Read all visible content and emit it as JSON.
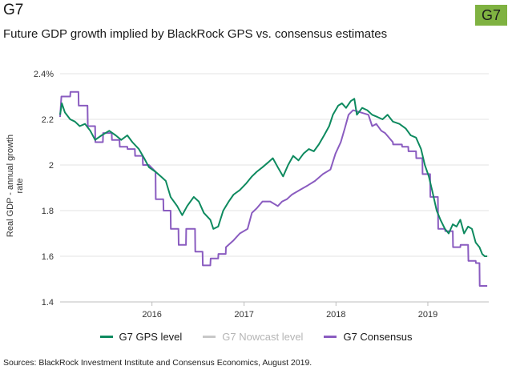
{
  "header": {
    "title": "G7",
    "badge": "G7",
    "badge_color": "#7fb241"
  },
  "chart_data": {
    "type": "line",
    "title": "Future GDP growth implied by BlackRock GPS vs. consensus estimates",
    "ylabel": "Real GDP - annual growth rate",
    "ylim": [
      1.4,
      2.4
    ],
    "y_ticks": [
      "1.4",
      "1.6",
      "1.8",
      "2",
      "2.2",
      "2.4%"
    ],
    "y_tick_values": [
      1.4,
      1.6,
      1.8,
      2.0,
      2.2,
      2.4
    ],
    "xlim": [
      "2015-01-01",
      "2019-08-31"
    ],
    "x_ticks": [
      "2016",
      "2017",
      "2018",
      "2019"
    ],
    "x_tick_dates": [
      "2016-01-01",
      "2017-01-01",
      "2018-01-01",
      "2019-01-01"
    ],
    "grid": true,
    "legend_position": "bottom",
    "series": [
      {
        "name": "G7 GPS level",
        "color": "#0e8a5f",
        "points": [
          [
            "2015-01-01",
            2.22
          ],
          [
            "2015-01-08",
            2.27
          ],
          [
            "2015-01-20",
            2.23
          ],
          [
            "2015-02-10",
            2.2
          ],
          [
            "2015-03-01",
            2.19
          ],
          [
            "2015-03-20",
            2.17
          ],
          [
            "2015-04-10",
            2.18
          ],
          [
            "2015-05-01",
            2.15
          ],
          [
            "2015-05-20",
            2.11
          ],
          [
            "2015-06-15",
            2.13
          ],
          [
            "2015-07-15",
            2.15
          ],
          [
            "2015-08-10",
            2.13
          ],
          [
            "2015-09-01",
            2.11
          ],
          [
            "2015-09-25",
            2.13
          ],
          [
            "2015-10-15",
            2.1
          ],
          [
            "2015-11-10",
            2.07
          ],
          [
            "2015-12-01",
            2.03
          ],
          [
            "2015-12-20",
            1.99
          ],
          [
            "2016-01-15",
            1.97
          ],
          [
            "2016-02-05",
            1.95
          ],
          [
            "2016-02-25",
            1.93
          ],
          [
            "2016-03-15",
            1.86
          ],
          [
            "2016-04-10",
            1.82
          ],
          [
            "2016-04-30",
            1.78
          ],
          [
            "2016-05-20",
            1.82
          ],
          [
            "2016-06-15",
            1.86
          ],
          [
            "2016-07-05",
            1.84
          ],
          [
            "2016-07-25",
            1.79
          ],
          [
            "2016-08-20",
            1.76
          ],
          [
            "2016-09-01",
            1.72
          ],
          [
            "2016-09-20",
            1.73
          ],
          [
            "2016-10-10",
            1.8
          ],
          [
            "2016-11-01",
            1.84
          ],
          [
            "2016-11-20",
            1.87
          ],
          [
            "2016-12-15",
            1.89
          ],
          [
            "2017-01-10",
            1.92
          ],
          [
            "2017-02-01",
            1.95
          ],
          [
            "2017-02-20",
            1.97
          ],
          [
            "2017-03-15",
            1.99
          ],
          [
            "2017-04-05",
            2.01
          ],
          [
            "2017-04-25",
            2.03
          ],
          [
            "2017-05-15",
            1.99
          ],
          [
            "2017-06-05",
            1.95
          ],
          [
            "2017-06-25",
            2.0
          ],
          [
            "2017-07-15",
            2.04
          ],
          [
            "2017-08-05",
            2.02
          ],
          [
            "2017-08-25",
            2.05
          ],
          [
            "2017-09-15",
            2.07
          ],
          [
            "2017-10-05",
            2.06
          ],
          [
            "2017-10-25",
            2.09
          ],
          [
            "2017-11-15",
            2.13
          ],
          [
            "2017-12-05",
            2.17
          ],
          [
            "2017-12-20",
            2.22
          ],
          [
            "2018-01-10",
            2.26
          ],
          [
            "2018-01-25",
            2.27
          ],
          [
            "2018-02-10",
            2.25
          ],
          [
            "2018-03-01",
            2.28
          ],
          [
            "2018-03-15",
            2.29
          ],
          [
            "2018-03-25",
            2.22
          ],
          [
            "2018-04-15",
            2.25
          ],
          [
            "2018-05-05",
            2.24
          ],
          [
            "2018-05-25",
            2.22
          ],
          [
            "2018-06-15",
            2.21
          ],
          [
            "2018-07-05",
            2.2
          ],
          [
            "2018-07-25",
            2.22
          ],
          [
            "2018-08-15",
            2.19
          ],
          [
            "2018-09-10",
            2.18
          ],
          [
            "2018-10-05",
            2.16
          ],
          [
            "2018-10-25",
            2.13
          ],
          [
            "2018-11-15",
            2.12
          ],
          [
            "2018-12-05",
            2.07
          ],
          [
            "2018-12-20",
            2.0
          ],
          [
            "2019-01-05",
            1.95
          ],
          [
            "2019-01-20",
            1.88
          ],
          [
            "2019-02-05",
            1.8
          ],
          [
            "2019-02-20",
            1.76
          ],
          [
            "2019-03-10",
            1.72
          ],
          [
            "2019-03-25",
            1.7
          ],
          [
            "2019-04-10",
            1.74
          ],
          [
            "2019-04-25",
            1.73
          ],
          [
            "2019-05-10",
            1.76
          ],
          [
            "2019-05-25",
            1.7
          ],
          [
            "2019-06-10",
            1.73
          ],
          [
            "2019-06-25",
            1.72
          ],
          [
            "2019-07-10",
            1.66
          ],
          [
            "2019-07-25",
            1.64
          ],
          [
            "2019-08-05",
            1.61
          ],
          [
            "2019-08-15",
            1.6
          ],
          [
            "2019-08-25",
            1.6
          ]
        ]
      },
      {
        "name": "G7 Nowcast level",
        "color": "#c8c8c8",
        "points": []
      },
      {
        "name": "G7 Consensus",
        "color": "#8a5cc0",
        "points": [
          [
            "2015-01-01",
            2.21
          ],
          [
            "2015-01-06",
            2.3
          ],
          [
            "2015-02-10",
            2.3
          ],
          [
            "2015-02-11",
            2.32
          ],
          [
            "2015-03-15",
            2.32
          ],
          [
            "2015-03-16",
            2.26
          ],
          [
            "2015-04-20",
            2.26
          ],
          [
            "2015-04-21",
            2.17
          ],
          [
            "2015-05-20",
            2.17
          ],
          [
            "2015-05-21",
            2.1
          ],
          [
            "2015-06-20",
            2.1
          ],
          [
            "2015-06-21",
            2.14
          ],
          [
            "2015-07-25",
            2.14
          ],
          [
            "2015-07-26",
            2.11
          ],
          [
            "2015-08-25",
            2.11
          ],
          [
            "2015-08-26",
            2.08
          ],
          [
            "2015-09-25",
            2.08
          ],
          [
            "2015-09-26",
            2.07
          ],
          [
            "2015-10-25",
            2.07
          ],
          [
            "2015-10-26",
            2.04
          ],
          [
            "2015-11-25",
            2.04
          ],
          [
            "2015-11-26",
            2.0
          ],
          [
            "2015-12-20",
            2.0
          ],
          [
            "2016-01-15",
            1.97
          ],
          [
            "2016-01-16",
            1.85
          ],
          [
            "2016-02-15",
            1.85
          ],
          [
            "2016-02-16",
            1.8
          ],
          [
            "2016-03-15",
            1.8
          ],
          [
            "2016-03-16",
            1.72
          ],
          [
            "2016-04-15",
            1.72
          ],
          [
            "2016-04-16",
            1.65
          ],
          [
            "2016-05-15",
            1.65
          ],
          [
            "2016-05-16",
            1.72
          ],
          [
            "2016-06-20",
            1.72
          ],
          [
            "2016-06-21",
            1.62
          ],
          [
            "2016-07-20",
            1.62
          ],
          [
            "2016-07-21",
            1.56
          ],
          [
            "2016-08-20",
            1.56
          ],
          [
            "2016-08-21",
            1.59
          ],
          [
            "2016-09-20",
            1.59
          ],
          [
            "2016-09-21",
            1.61
          ],
          [
            "2016-10-20",
            1.61
          ],
          [
            "2016-10-21",
            1.64
          ],
          [
            "2016-11-20",
            1.67
          ],
          [
            "2016-12-15",
            1.7
          ],
          [
            "2017-01-15",
            1.72
          ],
          [
            "2017-02-01",
            1.79
          ],
          [
            "2017-02-20",
            1.81
          ],
          [
            "2017-03-15",
            1.84
          ],
          [
            "2017-04-15",
            1.84
          ],
          [
            "2017-05-15",
            1.82
          ],
          [
            "2017-06-01",
            1.84
          ],
          [
            "2017-06-20",
            1.85
          ],
          [
            "2017-07-10",
            1.87
          ],
          [
            "2017-08-10",
            1.89
          ],
          [
            "2017-09-10",
            1.91
          ],
          [
            "2017-10-10",
            1.93
          ],
          [
            "2017-11-10",
            1.96
          ],
          [
            "2017-12-10",
            1.98
          ],
          [
            "2017-12-30",
            2.05
          ],
          [
            "2018-01-20",
            2.1
          ],
          [
            "2018-02-05",
            2.16
          ],
          [
            "2018-02-20",
            2.22
          ],
          [
            "2018-03-10",
            2.24
          ],
          [
            "2018-04-10",
            2.23
          ],
          [
            "2018-05-10",
            2.22
          ],
          [
            "2018-05-25",
            2.17
          ],
          [
            "2018-06-10",
            2.18
          ],
          [
            "2018-06-30",
            2.15
          ],
          [
            "2018-07-15",
            2.14
          ],
          [
            "2018-08-15",
            2.1
          ],
          [
            "2018-08-16",
            2.09
          ],
          [
            "2018-09-20",
            2.09
          ],
          [
            "2018-09-21",
            2.08
          ],
          [
            "2018-10-15",
            2.08
          ],
          [
            "2018-10-16",
            2.06
          ],
          [
            "2018-11-15",
            2.06
          ],
          [
            "2018-11-16",
            2.03
          ],
          [
            "2018-12-10",
            2.03
          ],
          [
            "2018-12-11",
            1.96
          ],
          [
            "2019-01-10",
            1.96
          ],
          [
            "2019-01-11",
            1.86
          ],
          [
            "2019-02-10",
            1.86
          ],
          [
            "2019-02-11",
            1.72
          ],
          [
            "2019-03-10",
            1.72
          ],
          [
            "2019-03-11",
            1.71
          ],
          [
            "2019-04-10",
            1.71
          ],
          [
            "2019-04-11",
            1.64
          ],
          [
            "2019-05-10",
            1.64
          ],
          [
            "2019-05-11",
            1.65
          ],
          [
            "2019-06-10",
            1.65
          ],
          [
            "2019-06-11",
            1.58
          ],
          [
            "2019-07-10",
            1.58
          ],
          [
            "2019-07-11",
            1.57
          ],
          [
            "2019-07-25",
            1.57
          ],
          [
            "2019-07-26",
            1.47
          ],
          [
            "2019-08-25",
            1.47
          ]
        ]
      }
    ]
  },
  "legend": {
    "items": [
      {
        "label": "G7 GPS level",
        "color": "#0e8a5f"
      },
      {
        "label": "G7 Nowcast level",
        "color": "#c8c8c8"
      },
      {
        "label": "G7 Consensus",
        "color": "#8a5cc0"
      }
    ]
  },
  "footer": {
    "source": "Sources: BlackRock Investment Institute and Consensus Economics, August 2019."
  }
}
